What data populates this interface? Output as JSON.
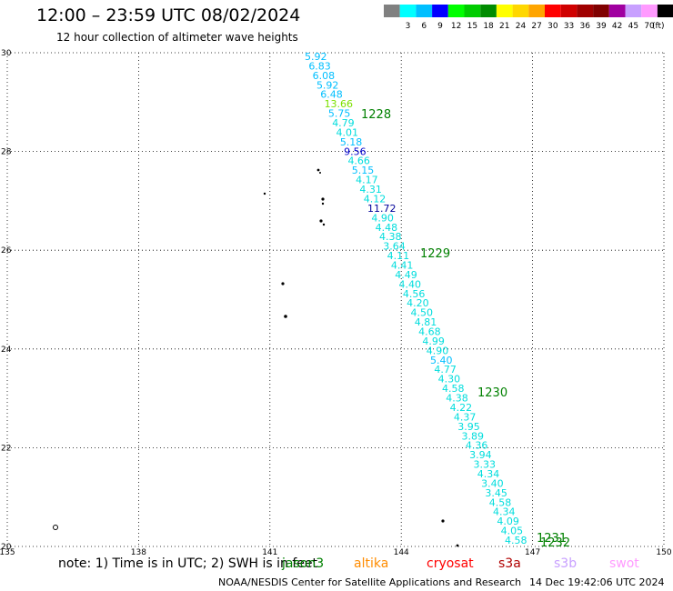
{
  "header": {
    "title": "12:00 – 23:59 UTC 08/02/2024",
    "subtitle": "12 hour collection of altimeter wave heights"
  },
  "legend": {
    "unit": "(ft)",
    "bins": [
      {
        "label": "",
        "color": "#808080"
      },
      {
        "label": "3",
        "color": "#00ffff"
      },
      {
        "label": "6",
        "color": "#00bfff"
      },
      {
        "label": "9",
        "color": "#0000ff"
      },
      {
        "label": "12",
        "color": "#00ff00"
      },
      {
        "label": "15",
        "color": "#00cc00"
      },
      {
        "label": "18",
        "color": "#008c00"
      },
      {
        "label": "21",
        "color": "#ffff00"
      },
      {
        "label": "24",
        "color": "#ffd700"
      },
      {
        "label": "27",
        "color": "#ffa500"
      },
      {
        "label": "30",
        "color": "#ff0000"
      },
      {
        "label": "33",
        "color": "#d00000"
      },
      {
        "label": "36",
        "color": "#a00000"
      },
      {
        "label": "39",
        "color": "#800000"
      },
      {
        "label": "42",
        "color": "#a000a0"
      },
      {
        "label": "45",
        "color": "#c8a0ff"
      },
      {
        "label": "70",
        "color": "#ff9aff"
      },
      {
        "label": "",
        "color": "#000000"
      }
    ]
  },
  "map": {
    "lat_ticks": [
      "30",
      "28",
      "26",
      "24",
      "22",
      "20"
    ],
    "lon_ticks": [
      "135",
      "138",
      "141",
      "144",
      "147",
      "150"
    ],
    "observations": [
      {
        "v": "5.92",
        "c": "#00bfff"
      },
      {
        "v": "6.83",
        "c": "#00bfff"
      },
      {
        "v": "6.08",
        "c": "#00bfff"
      },
      {
        "v": "5.92",
        "c": "#00bfff"
      },
      {
        "v": "6.48",
        "c": "#00bfff"
      },
      {
        "v": "13.66",
        "c": "#7ce000"
      },
      {
        "v": "5.75",
        "c": "#00bfff"
      },
      {
        "v": "4.79",
        "c": "#00dddd"
      },
      {
        "v": "4.01",
        "c": "#00dddd"
      },
      {
        "v": "5.18",
        "c": "#00bfff"
      },
      {
        "v": "9.56",
        "c": "#0000cc"
      },
      {
        "v": "4.66",
        "c": "#00dddd"
      },
      {
        "v": "5.15",
        "c": "#00bfff"
      },
      {
        "v": "4.17",
        "c": "#00dddd"
      },
      {
        "v": "4.31",
        "c": "#00dddd"
      },
      {
        "v": "4.12",
        "c": "#00dddd"
      },
      {
        "v": "11.72",
        "c": "#000099"
      },
      {
        "v": "4.90",
        "c": "#00dddd"
      },
      {
        "v": "4.48",
        "c": "#00dddd"
      },
      {
        "v": "4.38",
        "c": "#00dddd"
      },
      {
        "v": "3.64",
        "c": "#00dddd"
      },
      {
        "v": "4.11",
        "c": "#00dddd"
      },
      {
        "v": "4.41",
        "c": "#00dddd"
      },
      {
        "v": "4.49",
        "c": "#00dddd"
      },
      {
        "v": "4.40",
        "c": "#00dddd"
      },
      {
        "v": "4.56",
        "c": "#00dddd"
      },
      {
        "v": "4.20",
        "c": "#00dddd"
      },
      {
        "v": "4.50",
        "c": "#00dddd"
      },
      {
        "v": "4.81",
        "c": "#00dddd"
      },
      {
        "v": "4.68",
        "c": "#00dddd"
      },
      {
        "v": "4.99",
        "c": "#00dddd"
      },
      {
        "v": "4.90",
        "c": "#00dddd"
      },
      {
        "v": "5.40",
        "c": "#00bfff"
      },
      {
        "v": "4.77",
        "c": "#00dddd"
      },
      {
        "v": "4.30",
        "c": "#00dddd"
      },
      {
        "v": "4.58",
        "c": "#00dddd"
      },
      {
        "v": "4.38",
        "c": "#00dddd"
      },
      {
        "v": "4.22",
        "c": "#00dddd"
      },
      {
        "v": "4.37",
        "c": "#00dddd"
      },
      {
        "v": "3.95",
        "c": "#00dddd"
      },
      {
        "v": "3.89",
        "c": "#00dddd"
      },
      {
        "v": "4.36",
        "c": "#00dddd"
      },
      {
        "v": "3.94",
        "c": "#00dddd"
      },
      {
        "v": "3.33",
        "c": "#00dddd"
      },
      {
        "v": "4.34",
        "c": "#00dddd"
      },
      {
        "v": "3.40",
        "c": "#00dddd"
      },
      {
        "v": "3.45",
        "c": "#00dddd"
      },
      {
        "v": "4.58",
        "c": "#00dddd"
      },
      {
        "v": "4.34",
        "c": "#00dddd"
      },
      {
        "v": "4.09",
        "c": "#00dddd"
      },
      {
        "v": "4.05",
        "c": "#00dddd"
      },
      {
        "v": "4.58",
        "c": "#00dddd"
      }
    ],
    "pass_labels": [
      "1228",
      "1229",
      "1230",
      "1231",
      "1232"
    ]
  },
  "footer": {
    "note": "note: 1) Time is in UTC; 2) SWH is in feet",
    "missions": [
      {
        "name": "jason3",
        "color": "#008000"
      },
      {
        "name": "altika",
        "color": "#ff8c00"
      },
      {
        "name": "cryosat",
        "color": "#ff0000"
      },
      {
        "name": "s3a",
        "color": "#b00000"
      },
      {
        "name": "s3b",
        "color": "#c8a0ff"
      },
      {
        "name": "swot",
        "color": "#ff9aff"
      }
    ],
    "credit": "NOAA/NESDIS Center for Satellite Applications and Research",
    "timestamp": "14 Dec 19:42:06 UTC 2024"
  }
}
